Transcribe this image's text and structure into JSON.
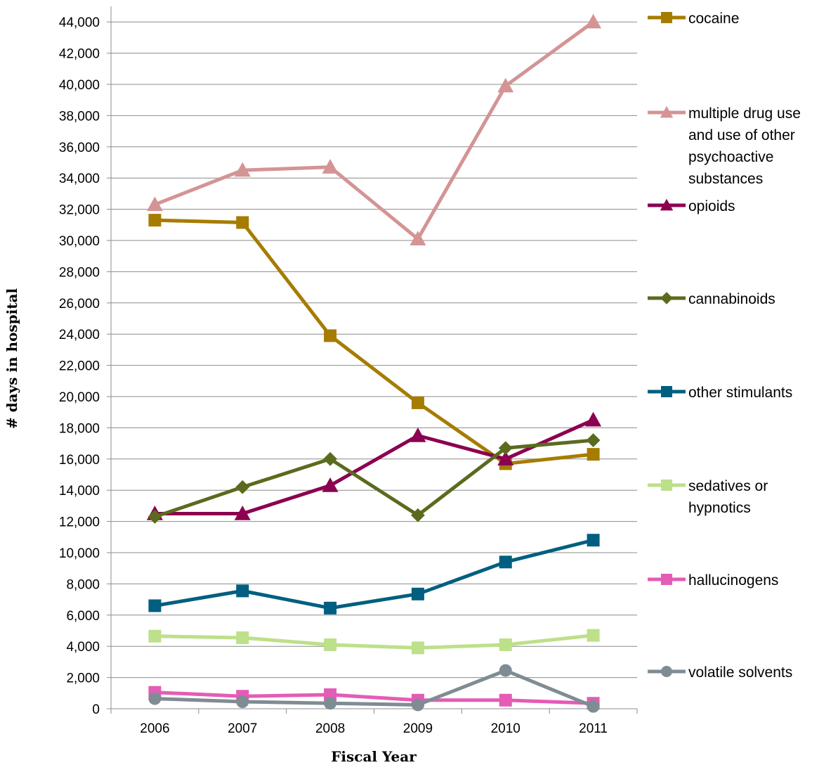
{
  "chart_data": {
    "type": "line",
    "title": "",
    "xlabel": "Fiscal Year",
    "ylabel": "# days in hospital",
    "categories": [
      "2006",
      "2007",
      "2008",
      "2009",
      "2010",
      "2011"
    ],
    "ylim": [
      0,
      45000
    ],
    "yticks": [
      0,
      2000,
      4000,
      6000,
      8000,
      10000,
      12000,
      14000,
      16000,
      18000,
      20000,
      22000,
      24000,
      26000,
      28000,
      30000,
      32000,
      34000,
      36000,
      38000,
      40000,
      42000,
      44000
    ],
    "ytick_labels": [
      "0",
      "2,000",
      "4,000",
      "6,000",
      "8,000",
      "10,000",
      "12,000",
      "14,000",
      "16,000",
      "18,000",
      "20,000",
      "22,000",
      "24,000",
      "26,000",
      "28,000",
      "30,000",
      "32,000",
      "34,000",
      "36,000",
      "38,000",
      "40,000",
      "42,000",
      "44,000"
    ],
    "grid": true,
    "legend_position": "right",
    "series": [
      {
        "name": "cocaine",
        "legend_lines": [
          "cocaine"
        ],
        "color": "#A67C00",
        "marker": "square",
        "values": [
          31300,
          31150,
          23900,
          19600,
          15700,
          16300
        ]
      },
      {
        "name": "multiple drug use and use of other psychoactive substances",
        "legend_lines": [
          "multiple drug use",
          "and use of other",
          "psychoactive",
          "substances"
        ],
        "color": "#D49494",
        "marker": "triangle",
        "values": [
          32300,
          34500,
          34700,
          30100,
          39900,
          44000
        ]
      },
      {
        "name": "opioids",
        "legend_lines": [
          "opioids"
        ],
        "color": "#8B0050",
        "marker": "triangle",
        "values": [
          12500,
          12500,
          14300,
          17500,
          16000,
          18500
        ]
      },
      {
        "name": "cannabinoids",
        "legend_lines": [
          "cannabinoids"
        ],
        "color": "#5A6B1E",
        "marker": "diamond",
        "values": [
          12300,
          14200,
          16000,
          12400,
          16700,
          17200
        ]
      },
      {
        "name": "other stimulants",
        "legend_lines": [
          "other stimulants"
        ],
        "color": "#005F80",
        "marker": "square",
        "values": [
          6600,
          7550,
          6450,
          7350,
          9400,
          10800
        ]
      },
      {
        "name": "sedatives or hypnotics",
        "legend_lines": [
          "sedatives or",
          "hypnotics"
        ],
        "color": "#BDE08A",
        "marker": "square",
        "values": [
          4650,
          4550,
          4100,
          3900,
          4100,
          4700
        ]
      },
      {
        "name": "hallucinogens",
        "legend_lines": [
          "hallucinogens"
        ],
        "color": "#E45CB5",
        "marker": "square",
        "values": [
          1050,
          800,
          900,
          550,
          550,
          350
        ]
      },
      {
        "name": "volatile solvents",
        "legend_lines": [
          "volatile solvents"
        ],
        "color": "#7F8C94",
        "marker": "circle",
        "values": [
          650,
          450,
          350,
          250,
          2450,
          150
        ]
      }
    ]
  }
}
